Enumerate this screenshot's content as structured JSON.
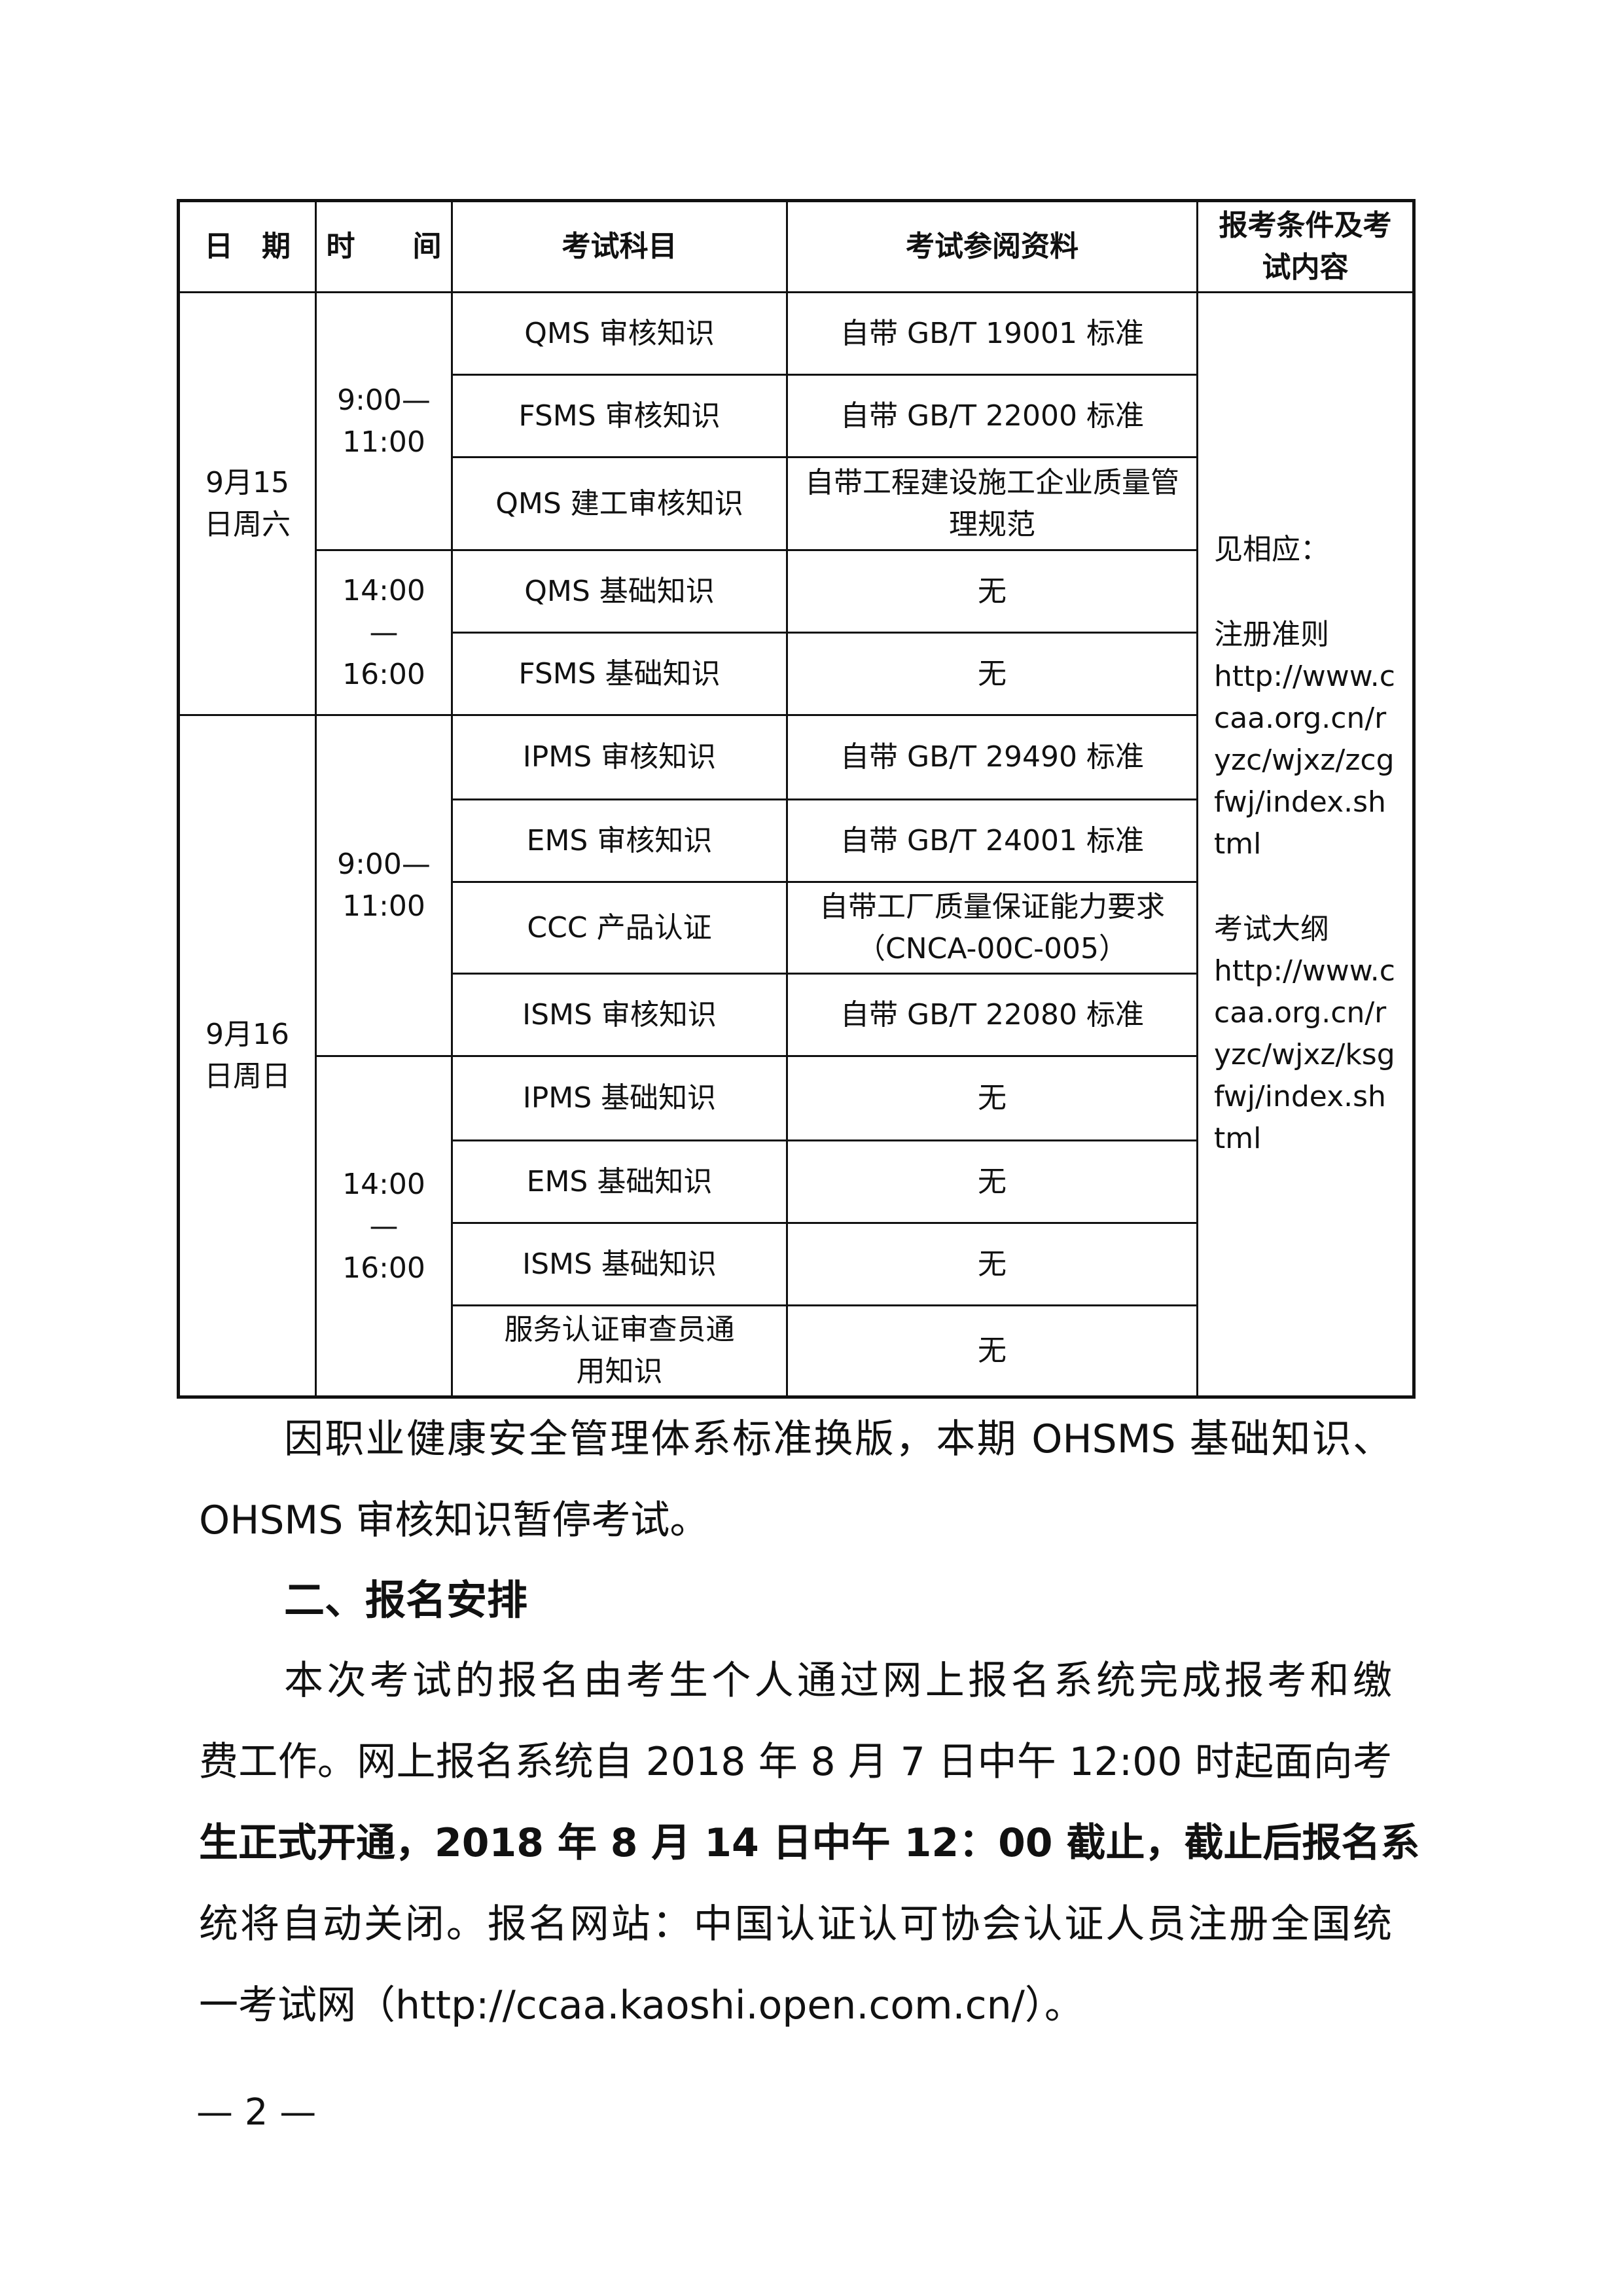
{
  "table": {
    "headers": [
      "日　期",
      "时　　间",
      "考试科目",
      "考试参阅资料",
      "报考条件及考试内容"
    ],
    "days": [
      {
        "date": "9月15日周六",
        "slots": [
          {
            "time": "9:00—11:00",
            "exams": [
              {
                "subject": "QMS 审核知识",
                "reference": "自带 GB/T 19001 标准"
              },
              {
                "subject": "FSMS 审核知识",
                "reference": "自带 GB/T 22000 标准"
              },
              {
                "subject": "QMS 建工审核知识",
                "reference": "自带工程建设施工企业质量管理规范"
              }
            ]
          },
          {
            "time": "14:00—16:00",
            "exams": [
              {
                "subject": "QMS 基础知识",
                "reference": "无"
              },
              {
                "subject": "FSMS 基础知识",
                "reference": "无"
              }
            ]
          }
        ]
      },
      {
        "date": "9月16日周日",
        "slots": [
          {
            "time": "9:00—11:00",
            "exams": [
              {
                "subject": "IPMS 审核知识",
                "reference": "自带 GB/T 29490 标准"
              },
              {
                "subject": "EMS 审核知识",
                "reference": "自带 GB/T 24001 标准"
              },
              {
                "subject": "CCC 产品认证",
                "reference": "自带工厂质量保证能力要求（CNCA-00C-005）"
              },
              {
                "subject": "ISMS 审核知识",
                "reference": "自带 GB/T 22080 标准"
              }
            ]
          },
          {
            "time": "14:00—16:00",
            "exams": [
              {
                "subject": "IPMS 基础知识",
                "reference": "无"
              },
              {
                "subject": "EMS 基础知识",
                "reference": "无"
              },
              {
                "subject": "ISMS 基础知识",
                "reference": "无"
              },
              {
                "subject": "服务认证审查员通用知识",
                "reference": "无"
              }
            ]
          }
        ]
      }
    ],
    "conditions": {
      "intro": "见相应：",
      "rules_label": "注册准则",
      "rules_url": "http://www.ccaa.org.cn/ryzc/wjxz/zcgfwj/index.shtml",
      "syllabus_label": "考试大纲",
      "syllabus_url": "http://www.ccaa.org.cn/ryzc/wjxz/ksgfwj/index.shtml"
    }
  },
  "notice_lines": [
    "因职业健康安全管理体系标准换版，本期 OHSMS 基础知识、",
    "OHSMS 审核知识暂停考试。"
  ],
  "section_heading": "二、报名安排",
  "registration_lines": [
    "本次考试的报名由考生个人通过网上报名系统完成报考和缴",
    "费工作。网上报名系统自 2018 年 8 月 7 日中午 12:00 时起面向考",
    "生正式开通，2018 年 8 月 14 日中午 12：00 截止，截止后报名系",
    "统将自动关闭。报名网站：中国认证认可协会认证人员注册全国统",
    "一考试网（http://ccaa.kaoshi.open.com.cn/）。"
  ],
  "page_number": "— 2 —"
}
